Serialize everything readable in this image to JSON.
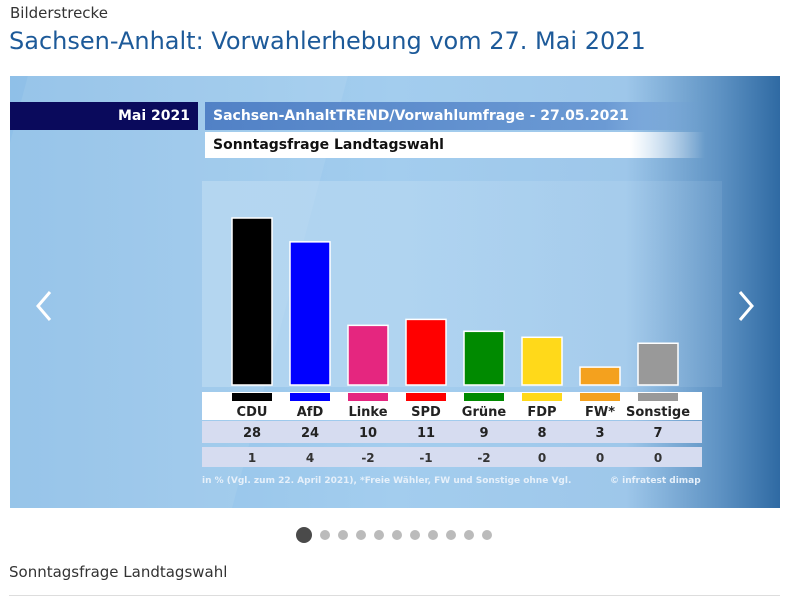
{
  "header": {
    "kicker": "Bilderstrecke",
    "title": "Sachsen-Anhalt: Vorwahlerhebung vom 27. Mai 2021"
  },
  "slide": {
    "month": "Mai 2021",
    "headline": "Sachsen-AnhaltTREND/Vorwahlumfrage - 27.05.2021",
    "subtitle": "Sonntagsfrage Landtagswahl",
    "footnote": "in % (Vgl. zum 22. April 2021), *Freie Wähler, FW und Sonstige ohne Vgl.",
    "copyright": "© infratest dimap"
  },
  "chart_data": {
    "type": "bar",
    "title": "Sonntagsfrage Landtagswahl",
    "ylabel": "in %",
    "ylim": [
      0,
      30
    ],
    "categories": [
      "CDU",
      "AfD",
      "Linke",
      "SPD",
      "Grüne",
      "FDP",
      "FW*",
      "Sonstige"
    ],
    "values": [
      28,
      24,
      10,
      11,
      9,
      8,
      3,
      7
    ],
    "changes": [
      "1",
      "4",
      "-2",
      "-1",
      "-2",
      "0",
      "0",
      "0"
    ],
    "colors": [
      "#000000",
      "#0000ff",
      "#e5267f",
      "#ff0000",
      "#008a00",
      "#ffd91a",
      "#f4a11e",
      "#999999"
    ]
  },
  "carousel": {
    "slide_count": 11,
    "active_index": 0,
    "caption": "Sonntagsfrage Landtagswahl"
  }
}
